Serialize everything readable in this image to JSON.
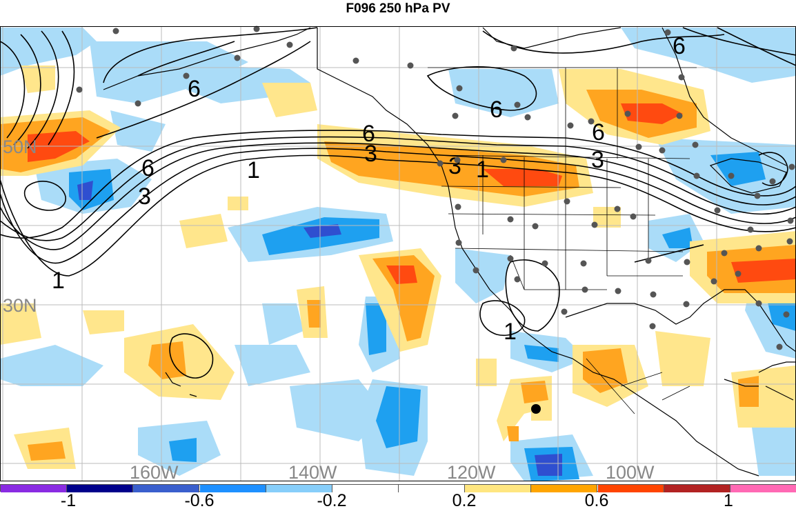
{
  "title": "F096 250 hPa PV",
  "map": {
    "lat_labels": [
      "50N",
      "30N"
    ],
    "lon_labels": [
      "160W",
      "140W",
      "120W",
      "100W"
    ],
    "contour_labels": [
      "6",
      "3",
      "1",
      "6",
      "6",
      "3",
      "1",
      "6",
      "6",
      "3",
      "1"
    ],
    "contour_levels": [
      1,
      2,
      3,
      4,
      5,
      6
    ],
    "storm_marker": "black-dot"
  },
  "colorbar": {
    "tick_labels": [
      "-1",
      "-0.6",
      "-0.2",
      "0.2",
      "0.6",
      "1"
    ],
    "colors": [
      "#8a2be2",
      "#00008b",
      "#3a5fcd",
      "#1e90ff",
      "#87cefa",
      "#ffffff",
      "#ffffff",
      "#ffe680",
      "#ffa500",
      "#ff4500",
      "#b22222",
      "#ff69b4"
    ]
  },
  "colors": {
    "neg_strong": "#2f4fd0",
    "neg_mid": "#1ea0f0",
    "neg_weak": "#aadcf8",
    "pos_weak": "#ffe68c",
    "pos_mid": "#ffa520",
    "pos_strong": "#ff4a10",
    "coast": "#000000",
    "grid": "#bbbbbb",
    "stations": "#555555"
  }
}
